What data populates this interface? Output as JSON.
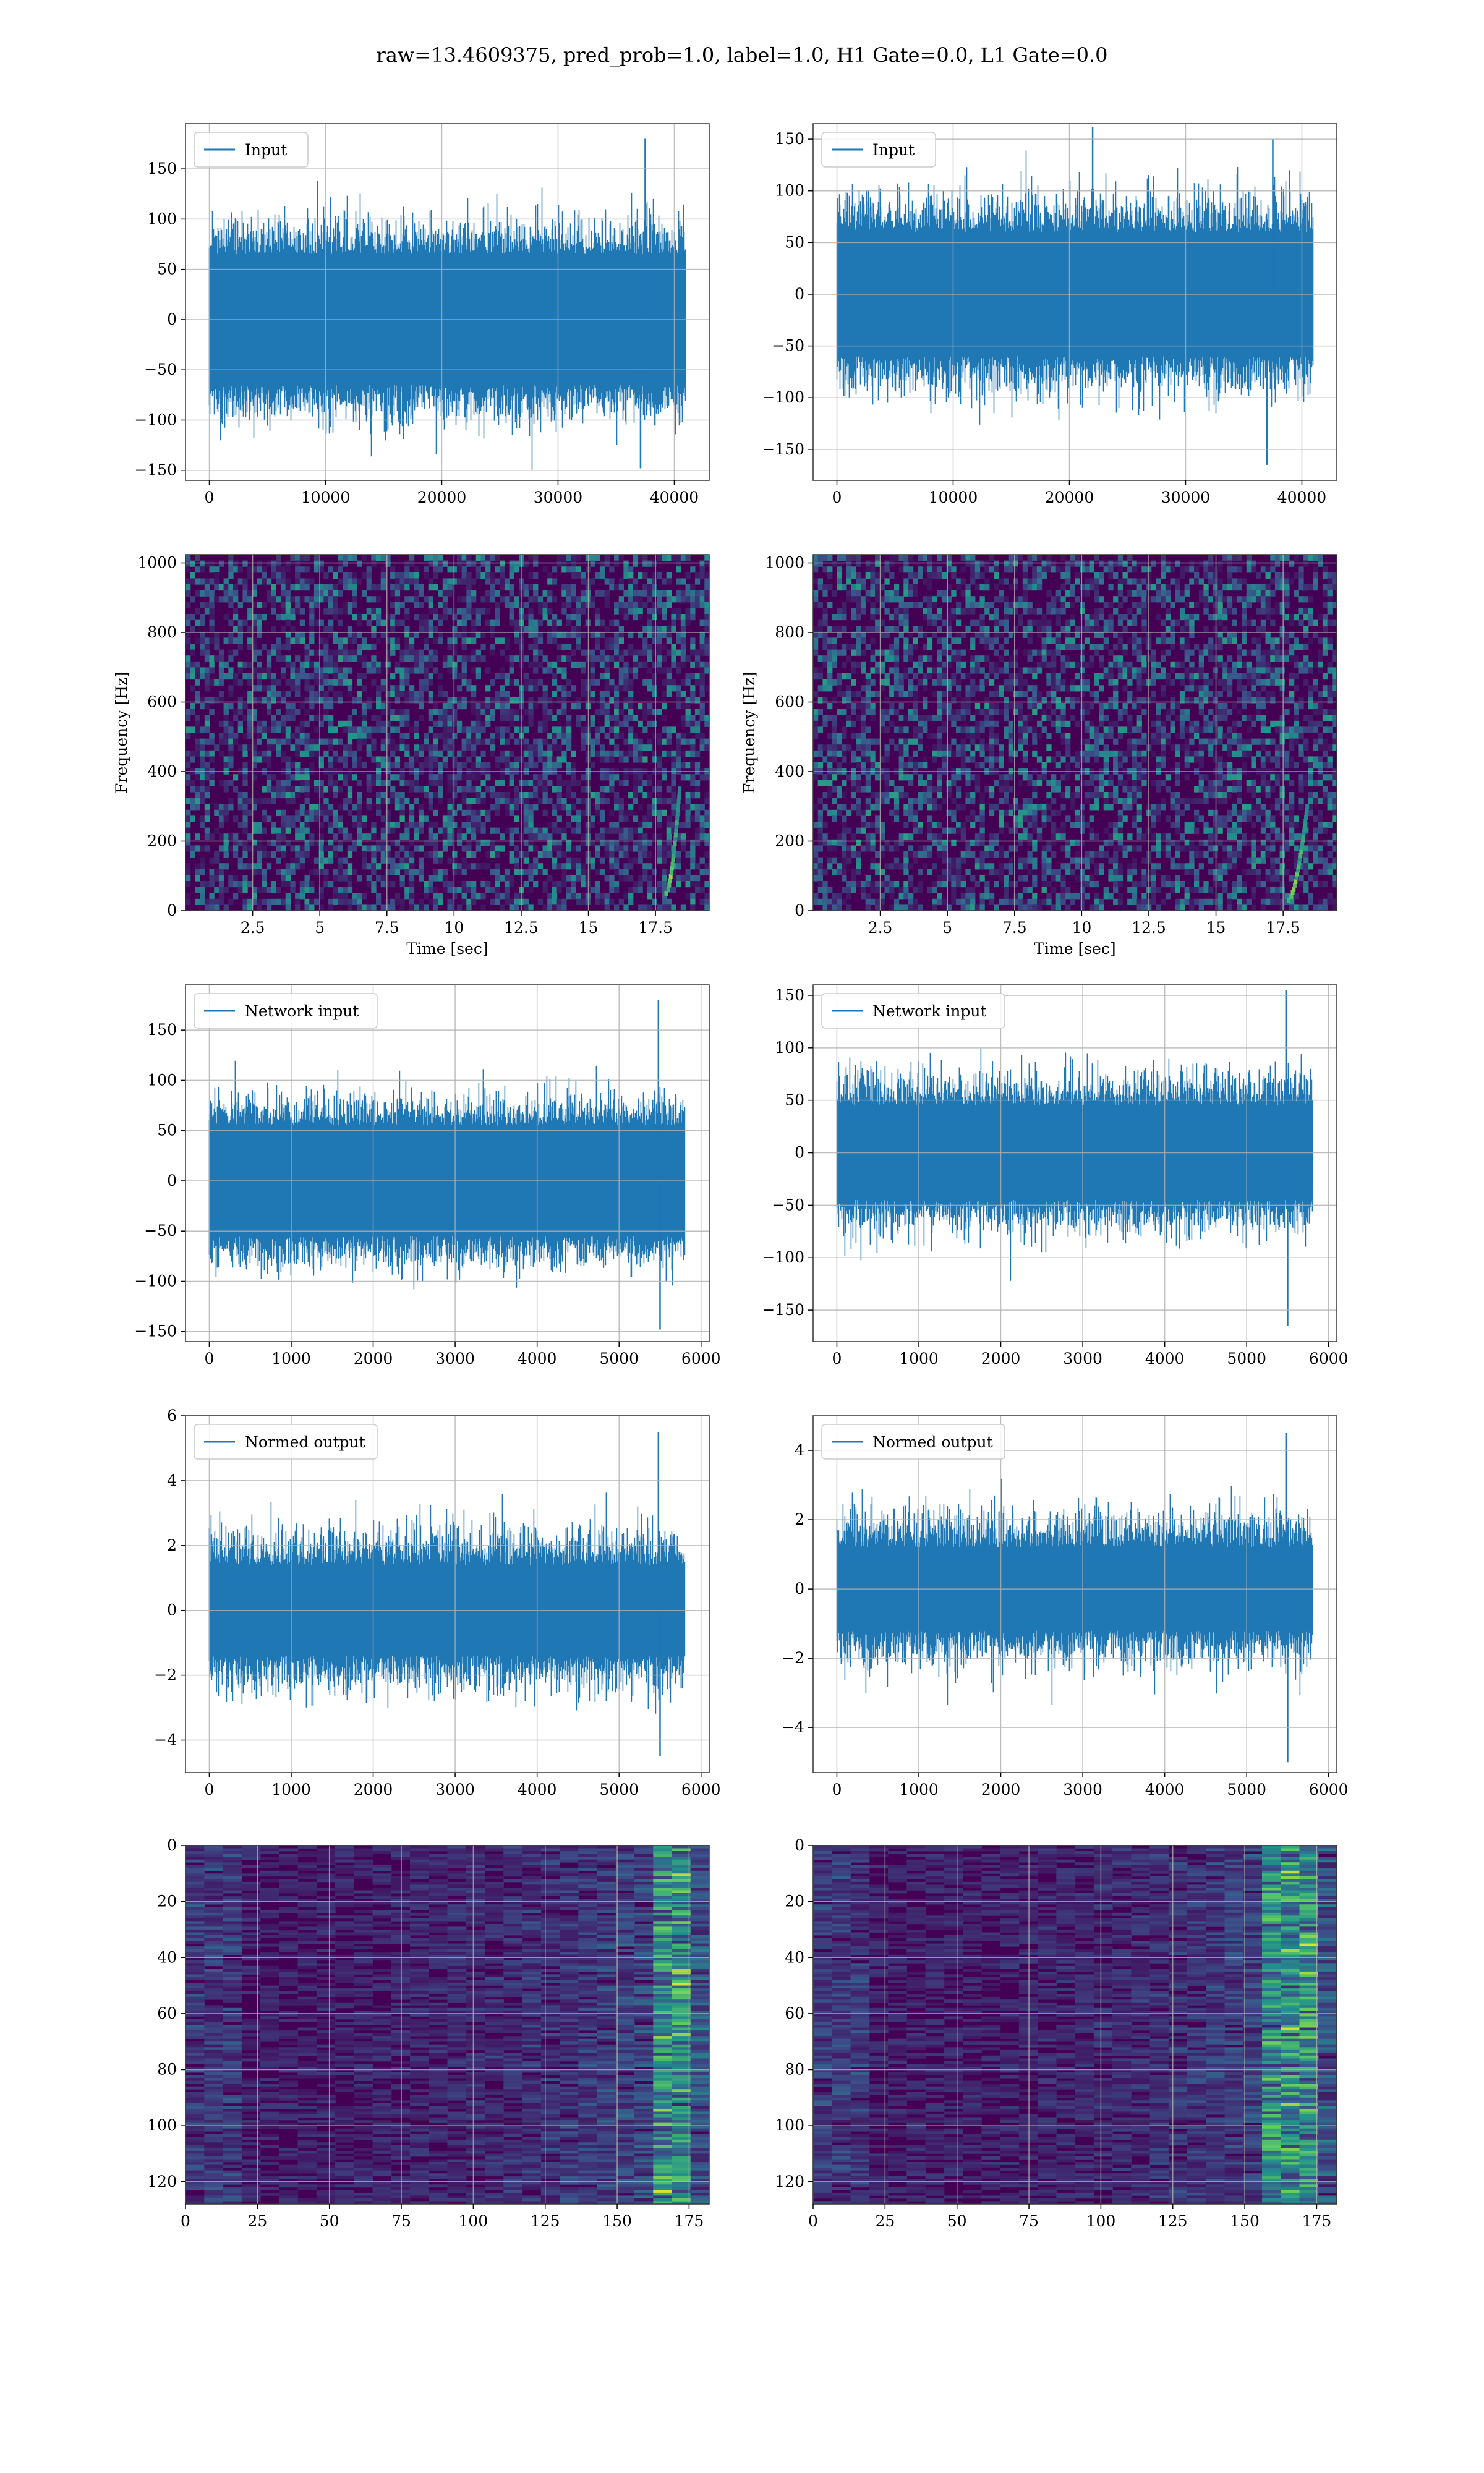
{
  "figure": {
    "suptitle": "raw=13.4609375, pred_prob=1.0, label=1.0, H1 Gate=0.0, L1 Gate=0.0"
  },
  "colors": {
    "line": "#1f77b4",
    "grid": "#b0b0b0",
    "viridis_low": "#440154",
    "viridis_mid": "#21918c",
    "viridis_high": "#fde725"
  },
  "chart_data": [
    {
      "id": "r1c1",
      "type": "line",
      "legend": "Input",
      "xlim": [
        -2048,
        43008
      ],
      "ylim": [
        -160,
        195
      ],
      "xticks": [
        0,
        10000,
        20000,
        30000,
        40000
      ],
      "yticks": [
        -150,
        -100,
        -50,
        0,
        50,
        100,
        150
      ],
      "x_range": [
        0,
        40960
      ],
      "band": [
        -65,
        65
      ],
      "typical_peak": [
        -100,
        100
      ],
      "spikes": [
        {
          "x": 37500,
          "y": 180
        },
        {
          "x": 37100,
          "y": -148
        }
      ]
    },
    {
      "id": "r1c2",
      "type": "line",
      "legend": "Input",
      "xlim": [
        -2048,
        43008
      ],
      "ylim": [
        -180,
        165
      ],
      "xticks": [
        0,
        10000,
        20000,
        30000,
        40000
      ],
      "yticks": [
        -150,
        -100,
        -50,
        0,
        50,
        100,
        150
      ],
      "x_range": [
        0,
        40960
      ],
      "band": [
        -60,
        60
      ],
      "typical_peak": [
        -95,
        95
      ],
      "spikes": [
        {
          "x": 22000,
          "y": 162
        },
        {
          "x": 37000,
          "y": -165
        },
        {
          "x": 37500,
          "y": 150
        }
      ]
    },
    {
      "id": "r2c1",
      "type": "heatmap",
      "xlim": [
        0,
        19.5
      ],
      "ylim": [
        0,
        1024
      ],
      "xticks": [
        2.5,
        5.0,
        7.5,
        10.0,
        12.5,
        15.0,
        17.5
      ],
      "yticks": [
        0,
        200,
        400,
        600,
        800,
        1000
      ],
      "xlabel": "Time [sec]",
      "ylabel": "Frequency [Hz]",
      "chirp": {
        "t_start": 17.9,
        "t_end": 18.4,
        "f_start": 50,
        "f_end": 350
      }
    },
    {
      "id": "r2c2",
      "type": "heatmap",
      "xlim": [
        0,
        19.5
      ],
      "ylim": [
        0,
        1024
      ],
      "xticks": [
        2.5,
        5.0,
        7.5,
        10.0,
        12.5,
        15.0,
        17.5
      ],
      "yticks": [
        0,
        200,
        400,
        600,
        800,
        1000
      ],
      "xlabel": "Time [sec]",
      "ylabel": "Frequency [Hz]",
      "chirp": {
        "t_start": 17.7,
        "t_end": 18.4,
        "f_start": 30,
        "f_end": 300
      }
    },
    {
      "id": "r3c1",
      "type": "line",
      "legend": "Network input",
      "xlim": [
        -290,
        6100
      ],
      "ylim": [
        -160,
        195
      ],
      "xticks": [
        0,
        1000,
        2000,
        3000,
        4000,
        5000,
        6000
      ],
      "yticks": [
        -150,
        -100,
        -50,
        0,
        50,
        100,
        150
      ],
      "x_range": [
        0,
        5800
      ],
      "band": [
        -55,
        55
      ],
      "typical_peak": [
        -85,
        85
      ],
      "spikes": [
        {
          "x": 5480,
          "y": 180
        },
        {
          "x": 5500,
          "y": -148
        }
      ]
    },
    {
      "id": "r3c2",
      "type": "line",
      "legend": "Network input",
      "xlim": [
        -290,
        6100
      ],
      "ylim": [
        -180,
        160
      ],
      "xticks": [
        0,
        1000,
        2000,
        3000,
        4000,
        5000,
        6000
      ],
      "yticks": [
        -150,
        -100,
        -50,
        0,
        50,
        100,
        150
      ],
      "x_range": [
        0,
        5800
      ],
      "band": [
        -45,
        45
      ],
      "typical_peak": [
        -75,
        75
      ],
      "spikes": [
        {
          "x": 5480,
          "y": 155
        },
        {
          "x": 5500,
          "y": -165
        }
      ]
    },
    {
      "id": "r4c1",
      "type": "line",
      "legend": "Normed output",
      "xlim": [
        -290,
        6100
      ],
      "ylim": [
        -5,
        6
      ],
      "xticks": [
        0,
        1000,
        2000,
        3000,
        4000,
        5000,
        6000
      ],
      "yticks": [
        -4,
        -2,
        0,
        2,
        4,
        6
      ],
      "x_range": [
        0,
        5800
      ],
      "band": [
        -1.4,
        1.4
      ],
      "typical_peak": [
        -2.5,
        2.5
      ],
      "spikes": [
        {
          "x": 5480,
          "y": 5.5
        },
        {
          "x": 5500,
          "y": -4.5
        }
      ]
    },
    {
      "id": "r4c2",
      "type": "line",
      "legend": "Normed output",
      "xlim": [
        -290,
        6100
      ],
      "ylim": [
        -5.3,
        5
      ],
      "xticks": [
        0,
        1000,
        2000,
        3000,
        4000,
        5000,
        6000
      ],
      "yticks": [
        -4,
        -2,
        0,
        2,
        4
      ],
      "x_range": [
        0,
        5800
      ],
      "band": [
        -1.2,
        1.2
      ],
      "typical_peak": [
        -2.2,
        2.2
      ],
      "spikes": [
        {
          "x": 5480,
          "y": 4.5
        },
        {
          "x": 5500,
          "y": -5.0
        }
      ]
    },
    {
      "id": "r5c1",
      "type": "heatmap",
      "xlim": [
        0,
        182
      ],
      "ylim": [
        128,
        0
      ],
      "xticks": [
        0,
        25,
        50,
        75,
        100,
        125,
        150,
        175
      ],
      "yticks": [
        0,
        20,
        40,
        60,
        80,
        100,
        120
      ],
      "hot_columns": [
        160,
        175
      ]
    },
    {
      "id": "r5c2",
      "type": "heatmap",
      "xlim": [
        0,
        182
      ],
      "ylim": [
        128,
        0
      ],
      "xticks": [
        0,
        25,
        50,
        75,
        100,
        125,
        150,
        175
      ],
      "yticks": [
        0,
        20,
        40,
        60,
        80,
        100,
        120
      ],
      "hot_columns": [
        150,
        175
      ]
    }
  ]
}
